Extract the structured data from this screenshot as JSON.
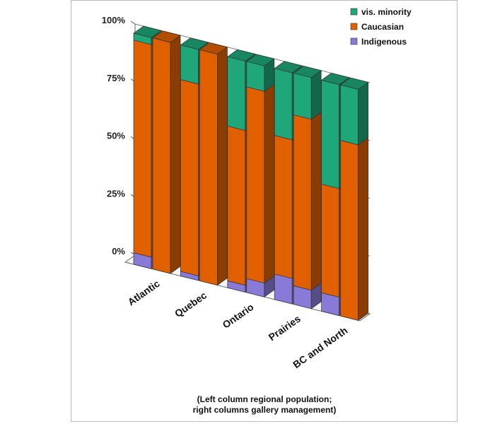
{
  "chart_data": {
    "type": "bar",
    "stacked": true,
    "three_d": true,
    "categories": [
      "Atlantic",
      "Quebec",
      "Ontario",
      "Prairies",
      "BC and North"
    ],
    "columns_per_category": [
      "regional population",
      "gallery management"
    ],
    "series": [
      {
        "name": "Indigenous",
        "color": "#8a7ad8",
        "values": [
          [
            5,
            0
          ],
          [
            2,
            0
          ],
          [
            3,
            6
          ],
          [
            11,
            8
          ],
          [
            8,
            0
          ]
        ]
      },
      {
        "name": "Caucasian",
        "color": "#e06000",
        "values": [
          [
            92,
            100
          ],
          [
            83,
            100
          ],
          [
            67,
            83
          ],
          [
            60,
            74
          ],
          [
            47,
            76
          ]
        ]
      },
      {
        "name": "vis. minority",
        "color": "#1fa77a",
        "values": [
          [
            3,
            0
          ],
          [
            15,
            0
          ],
          [
            30,
            11
          ],
          [
            29,
            18
          ],
          [
            45,
            24
          ]
        ]
      }
    ],
    "y_ticks": [
      "0%",
      "25%",
      "50%",
      "75%",
      "100%"
    ],
    "ylim": [
      0,
      100
    ],
    "grid": true,
    "legend_position": "top-right",
    "legend_order": [
      "vis. minority",
      "Caucasian",
      "Indigenous"
    ],
    "note_lines": [
      "(Left column regional population;",
      "right columns gallery management)"
    ]
  }
}
